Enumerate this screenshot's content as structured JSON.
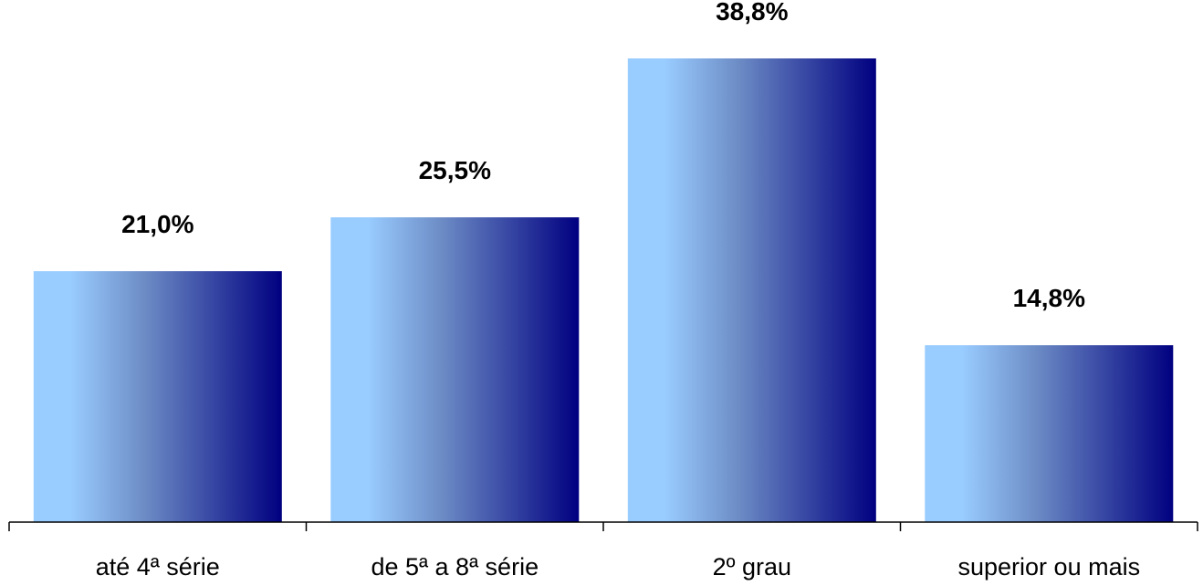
{
  "chart_data": {
    "type": "bar",
    "title": "",
    "xlabel": "",
    "ylabel": "",
    "categories": [
      "até 4ª série",
      "de 5ª a 8ª série",
      "2º grau",
      "superior ou mais"
    ],
    "values": [
      21.0,
      25.5,
      38.8,
      14.8
    ],
    "value_labels": [
      "21,0%",
      "25,5%",
      "38,8%",
      "14,8%"
    ],
    "ylim": [
      0,
      40
    ],
    "grid": false,
    "legend": "none",
    "colors": {
      "bar_gradient_start": "#99ccff",
      "bar_gradient_mid": "#6c8bc5",
      "bar_gradient_end": "#000080"
    }
  }
}
